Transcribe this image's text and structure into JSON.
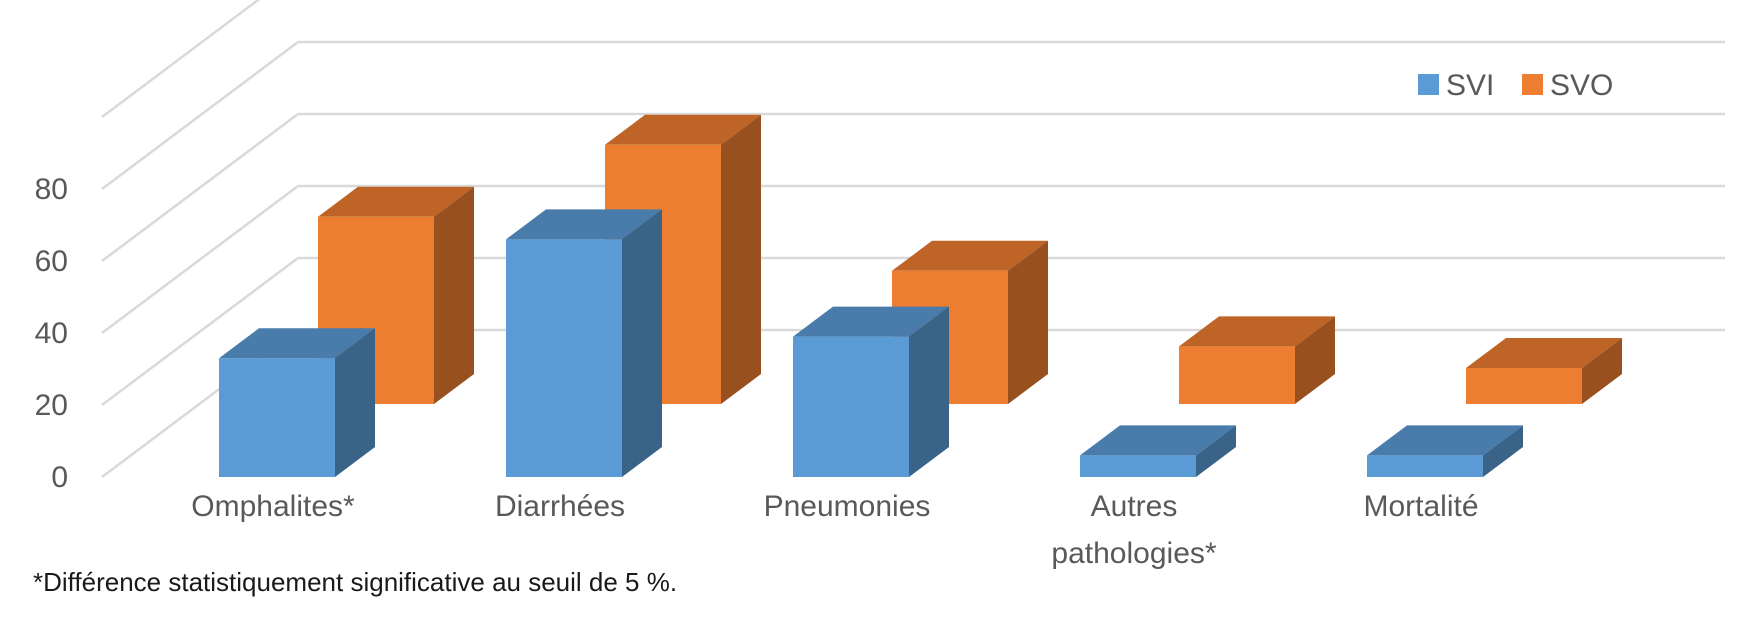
{
  "chart_data": {
    "type": "bar",
    "three_d": true,
    "categories": [
      "Omphalites*",
      "Diarrhées",
      "Pneumonies",
      "Autres pathologies*",
      "Mortalité"
    ],
    "series": [
      {
        "name": "SVI",
        "color": "#5B9BD5",
        "values": [
          33,
          66,
          39,
          6,
          6
        ]
      },
      {
        "name": "SVO",
        "color": "#ED7D31",
        "values": [
          52,
          72,
          37,
          16,
          10
        ]
      }
    ],
    "yticks": [
      0,
      20,
      40,
      60,
      80
    ],
    "ylim": [
      0,
      100
    ],
    "grid": true,
    "legend_position": "top-right"
  },
  "footnote": "*Différence statistiquement significative au seuil de 5 %."
}
